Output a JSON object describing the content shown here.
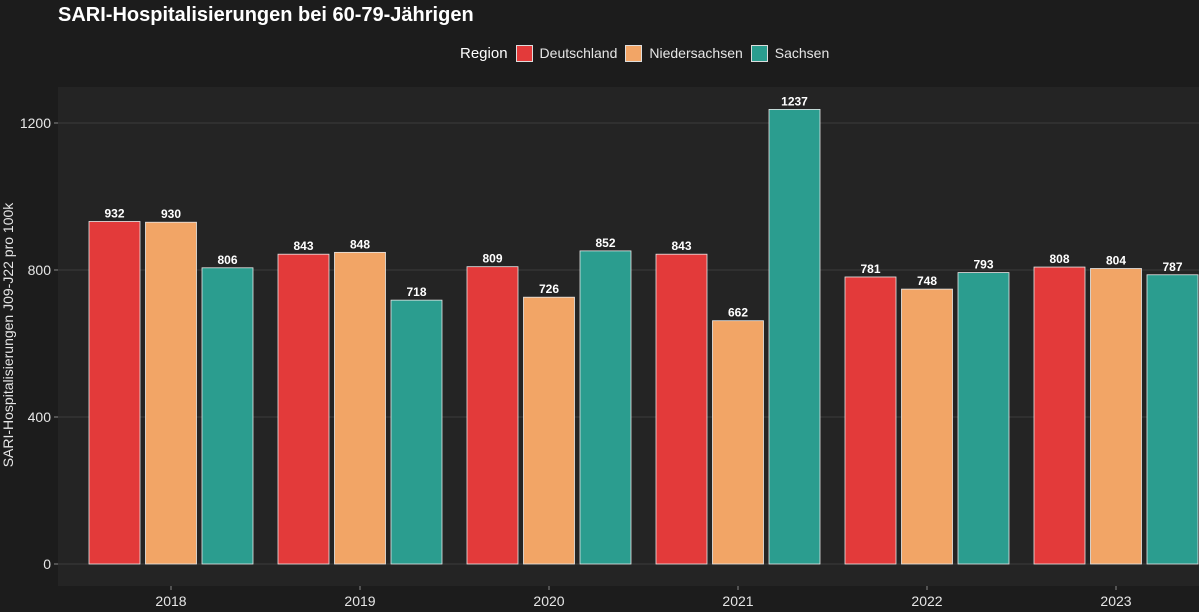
{
  "chart_data": {
    "type": "bar",
    "title": "SARI-Hospitalisierungen bei 60-79-Jährigen",
    "xlabel": "",
    "ylabel": "SARI-Hospitalisierungen J09-J22 pro 100k",
    "ylim": [
      0,
      1300
    ],
    "yticks": [
      0,
      400,
      800,
      1200
    ],
    "grid": true,
    "legend_title": "Region",
    "legend_position": "top",
    "categories": [
      "2018",
      "2019",
      "2020",
      "2021",
      "2022",
      "2023"
    ],
    "series": [
      {
        "name": "Deutschland",
        "color": "#e33a3a",
        "values": [
          932,
          843,
          809,
          843,
          781,
          808
        ]
      },
      {
        "name": "Niedersachsen",
        "color": "#f2a566",
        "values": [
          930,
          848,
          726,
          662,
          748,
          804
        ]
      },
      {
        "name": "Sachsen",
        "color": "#2b9d8f",
        "values": [
          806,
          718,
          852,
          1237,
          793,
          787
        ]
      }
    ]
  }
}
